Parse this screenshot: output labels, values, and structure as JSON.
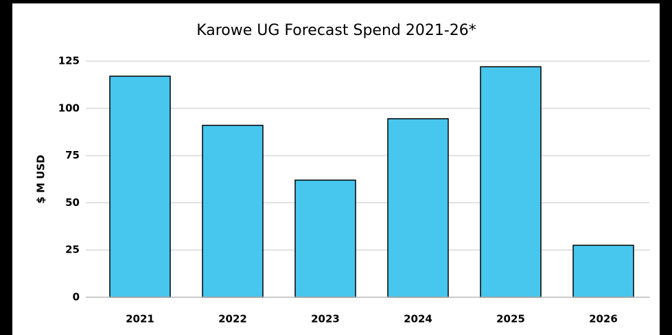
{
  "chart_data": {
    "type": "bar",
    "title": "Karowe UG Forecast Spend 2021-26*",
    "y_label": "$ M USD",
    "categories": [
      "2021",
      "2022",
      "2023",
      "2024",
      "2025",
      "2026"
    ],
    "values": [
      117,
      91,
      62,
      94.5,
      122,
      27.5
    ],
    "color": "#47c6ee",
    "ylim": [
      0,
      125
    ],
    "yticks": [
      0,
      25,
      50,
      75,
      100,
      125
    ],
    "grid": true
  }
}
